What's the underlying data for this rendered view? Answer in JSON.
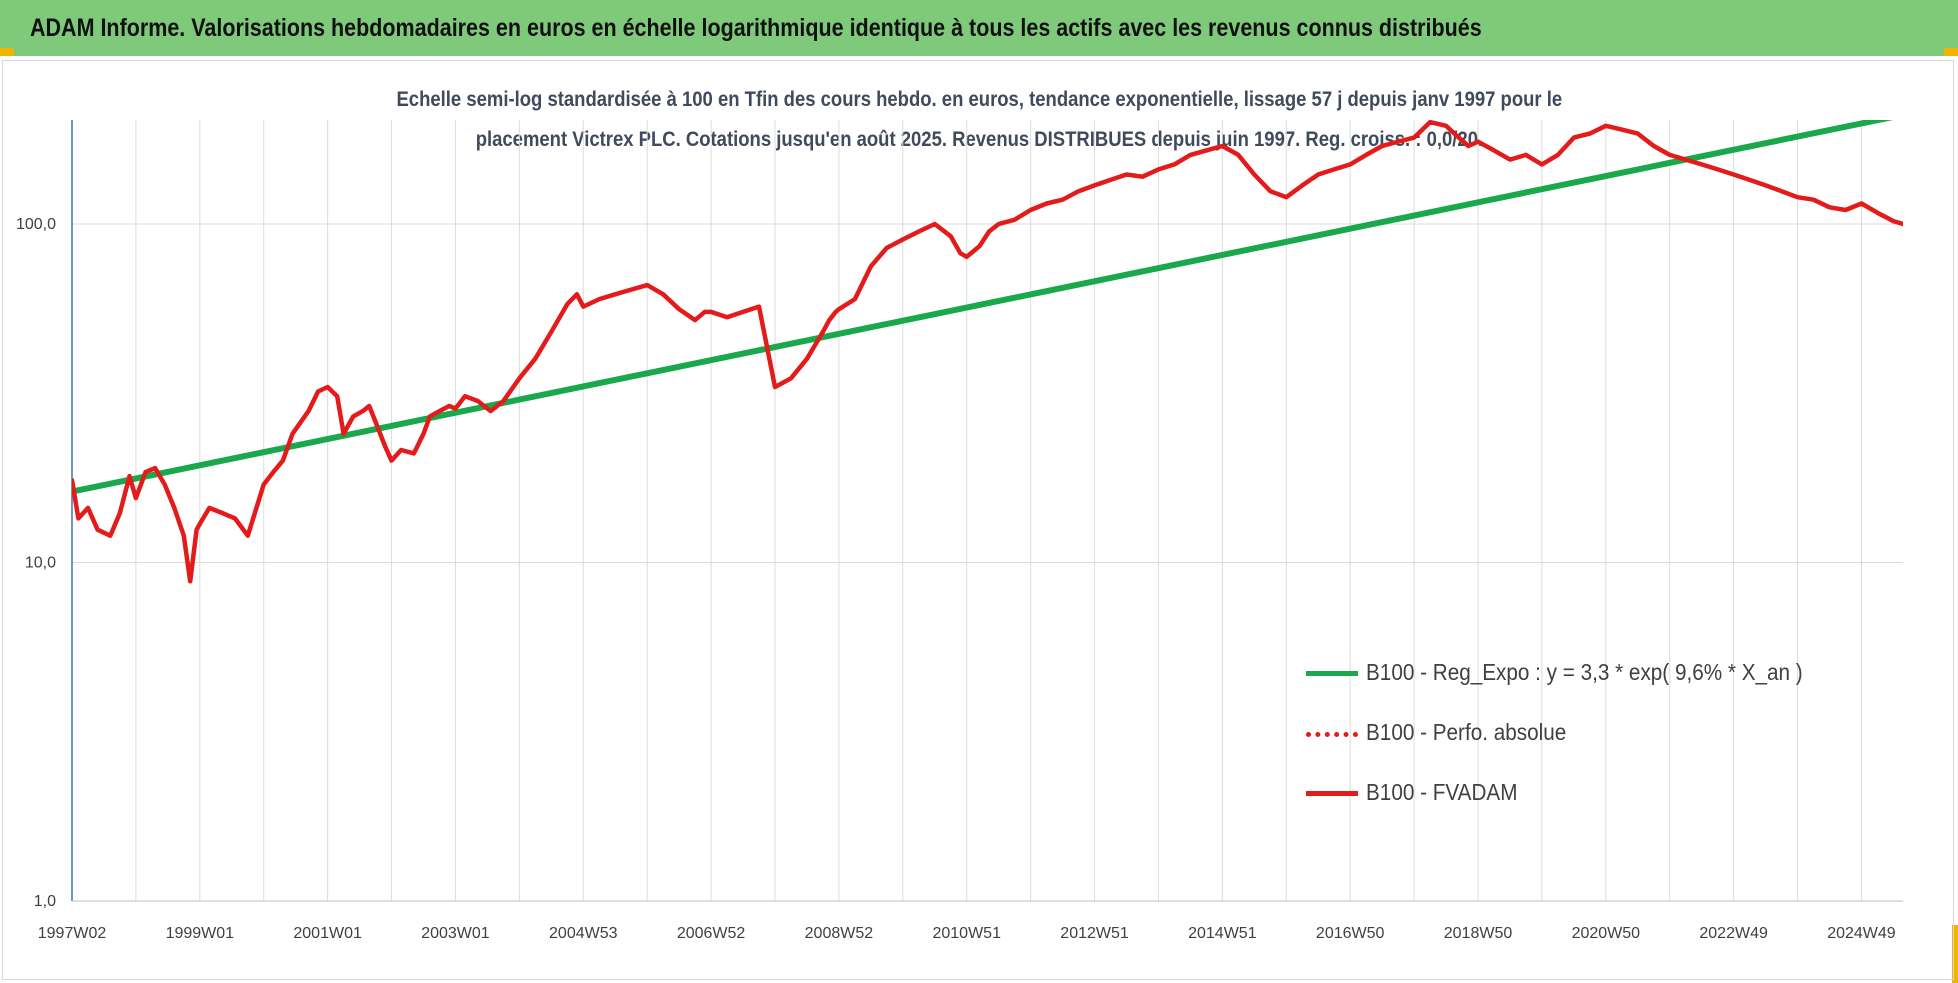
{
  "header": {
    "title": "ADAM Informe. Valorisations hebdomadaires en euros en échelle logarithmique identique à tous les actifs avec les revenus connus distribués"
  },
  "chart_data": {
    "type": "line",
    "title_line1": "Echelle semi-log standardisée à 100 en Tfin des cours hebdo. en euros, tendance exponentielle, lissage 57 j depuis janv 1997 pour le",
    "title_line2": "placement Victrex PLC. Cotations jusqu'en août 2025. Revenus DISTRIBUES depuis juin 1997. Reg. croiss. : 0,0/20.",
    "y_scale": "log",
    "ylim": [
      1,
      200
    ],
    "y_ticks": [
      1,
      10,
      100
    ],
    "y_tick_labels": [
      "1,0",
      "10,0",
      "100,0"
    ],
    "x_range": [
      1997.0,
      2025.65
    ],
    "x_tick_labels": [
      "1997W02",
      "1999W01",
      "2001W01",
      "2003W01",
      "2004W53",
      "2006W52",
      "2008W52",
      "2010W51",
      "2012W51",
      "2014W51",
      "2016W50",
      "2018W50",
      "2020W50",
      "2022W49",
      "2024W49"
    ],
    "x_tick_years": [
      1997.0,
      1999.0,
      2001.0,
      2003.0,
      2005.0,
      2007.0,
      2009.0,
      2011.0,
      2013.0,
      2015.0,
      2017.0,
      2019.0,
      2021.0,
      2023.0,
      2025.0
    ],
    "grid": true,
    "legend_position": "bottom-right",
    "series": [
      {
        "name": "B100 - Reg_Expo : y = 3,3 * exp( 9,6% *  X_an )",
        "color": "#19a84b",
        "style": "solid",
        "x": [
          1997.0,
          2025.65
        ],
        "values": [
          16.2,
          210
        ]
      },
      {
        "name": "B100 - Perfo. absolue",
        "color": "#e31b1b",
        "style": "dotted",
        "x": [],
        "values": []
      },
      {
        "name": "B100 - FVADAM",
        "color": "#e31b1b",
        "style": "solid",
        "x": [
          1997.0,
          1997.1,
          1997.25,
          1997.4,
          1997.6,
          1997.75,
          1997.9,
          1998.0,
          1998.15,
          1998.3,
          1998.45,
          1998.6,
          1998.75,
          1998.85,
          1998.95,
          1999.0,
          1999.15,
          1999.35,
          1999.55,
          1999.75,
          2000.0,
          2000.15,
          2000.3,
          2000.45,
          2000.7,
          2000.85,
          2001.0,
          2001.15,
          2001.25,
          2001.4,
          2001.55,
          2001.65,
          2001.75,
          2001.9,
          2002.0,
          2002.15,
          2002.35,
          2002.5,
          2002.6,
          2002.75,
          2002.9,
          2003.0,
          2003.15,
          2003.35,
          2003.55,
          2003.75,
          2004.0,
          2004.25,
          2004.5,
          2004.75,
          2004.9,
          2005.0,
          2005.25,
          2005.5,
          2005.75,
          2006.0,
          2006.25,
          2006.5,
          2006.75,
          2006.9,
          2007.0,
          2007.25,
          2007.5,
          2007.75,
          2008.0,
          2008.25,
          2008.5,
          2008.75,
          2008.85,
          2008.95,
          2009.0,
          2009.25,
          2009.5,
          2009.75,
          2010.0,
          2010.25,
          2010.5,
          2010.75,
          2010.9,
          2011.0,
          2011.2,
          2011.35,
          2011.5,
          2011.75,
          2012.0,
          2012.25,
          2012.5,
          2012.75,
          2013.0,
          2013.25,
          2013.5,
          2013.75,
          2014.0,
          2014.25,
          2014.5,
          2014.75,
          2015.0,
          2015.25,
          2015.5,
          2015.75,
          2016.0,
          2016.25,
          2016.5,
          2016.75,
          2017.0,
          2017.25,
          2017.5,
          2017.75,
          2018.0,
          2018.25,
          2018.5,
          2018.7,
          2018.85,
          2019.0,
          2019.25,
          2019.5,
          2019.75,
          2020.0,
          2020.25,
          2020.5,
          2020.75,
          2021.0,
          2021.25,
          2021.5,
          2021.75,
          2022.0,
          2022.25,
          2022.5,
          2022.75,
          2023.0,
          2023.25,
          2023.5,
          2023.75,
          2024.0,
          2024.25,
          2024.5,
          2024.75,
          2025.0,
          2025.25,
          2025.5,
          2025.65
        ],
        "values": [
          17.5,
          13.5,
          14.5,
          12.5,
          12.0,
          14.0,
          18.0,
          15.5,
          18.5,
          19.0,
          17.0,
          14.5,
          12.0,
          8.8,
          12.5,
          13.0,
          14.5,
          14.0,
          13.5,
          12.0,
          17.0,
          18.5,
          20.0,
          24.0,
          28.0,
          32.0,
          33.0,
          31.0,
          24.0,
          27.0,
          28.0,
          29.0,
          26.0,
          22.0,
          20.0,
          21.5,
          21.0,
          24.0,
          27.0,
          28.0,
          29.0,
          28.5,
          31.0,
          30.0,
          28.0,
          30.0,
          35.0,
          40.0,
          48.0,
          58.0,
          62.0,
          57.0,
          60.0,
          62.0,
          64.0,
          66.0,
          62.0,
          56.0,
          52.0,
          55.0,
          55.0,
          53.0,
          55.0,
          57.0,
          33.0,
          35.0,
          40.0,
          48.0,
          52.0,
          55.0,
          56.0,
          60.0,
          75.0,
          85.0,
          90.0,
          95.0,
          100.0,
          92.0,
          82.0,
          80.0,
          86.0,
          95.0,
          100.0,
          103.0,
          110.0,
          115.0,
          118.0,
          125.0,
          130.0,
          135.0,
          140.0,
          138.0,
          145.0,
          150.0,
          160.0,
          165.0,
          170.0,
          160.0,
          140.0,
          125.0,
          120.0,
          130.0,
          140.0,
          145.0,
          150.0,
          160.0,
          170.0,
          175.0,
          180.0,
          200.0,
          195.0,
          180.0,
          170.0,
          175.0,
          165.0,
          155.0,
          160.0,
          150.0,
          160.0,
          180.0,
          185.0,
          195.0,
          190.0,
          185.0,
          170.0,
          160.0,
          155.0,
          150.0,
          145.0,
          140.0,
          135.0,
          130.0,
          125.0,
          120.0,
          118.0,
          112.0,
          110.0,
          115.0,
          108.0,
          102.0,
          100.0
        ]
      }
    ]
  }
}
